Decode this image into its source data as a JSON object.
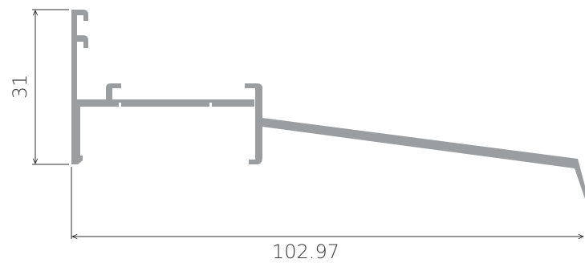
{
  "drawing": {
    "height_dimension": "31",
    "width_dimension": "102.97"
  },
  "colors": {
    "profile_fill": "#9b9ea0",
    "dimension_line": "#2f2f2f",
    "dimension_text": "#3a3a3a",
    "background": "#ffffff"
  }
}
